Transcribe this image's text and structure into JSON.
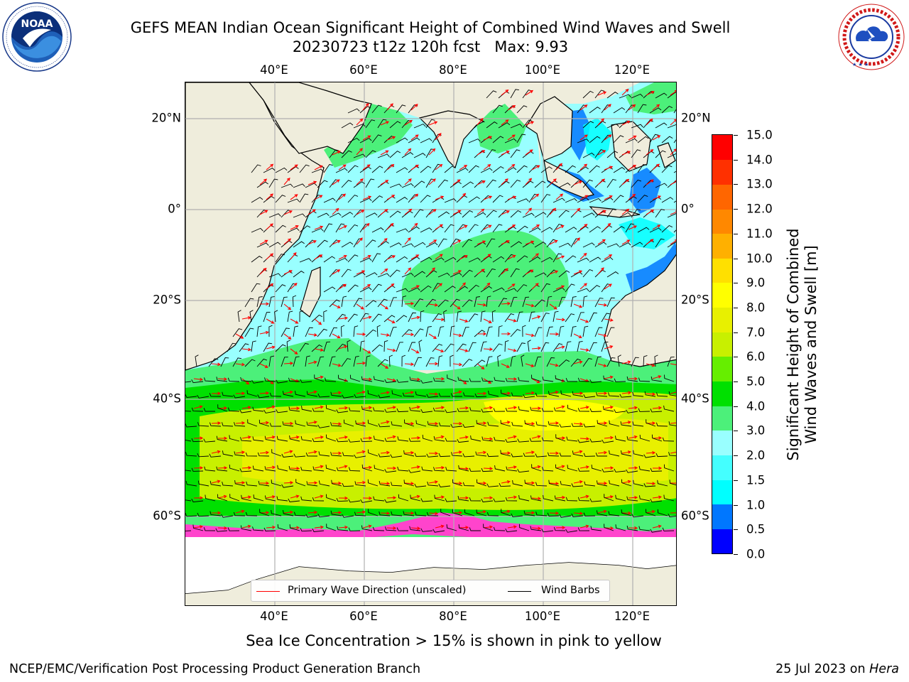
{
  "header": {
    "title_line1": "GEFS MEAN Indian Ocean Significant Height of Combined Wind Waves and Swell",
    "title_line2": "20230723 t12z 120h fcst   Max: 9.93"
  },
  "logos": {
    "left": {
      "icon": "noaa-logo",
      "text": "NOAA",
      "ring_text": "NATIONAL OCEANIC AND ATMOSPHERIC ADMINISTRATION · U.S. DEPARTMENT OF COMMERCE"
    },
    "right": {
      "icon": "nws-logo",
      "ring_text": "NATIONAL WEATHER SERVICE"
    }
  },
  "map": {
    "axes": {
      "lon_ticks": [
        "40°E",
        "60°E",
        "80°E",
        "100°E",
        "120°E"
      ],
      "lat_ticks_left": [
        "20°N",
        "0°",
        "20°S",
        "40°S",
        "60°S"
      ],
      "lat_ticks_right": [
        "20°N",
        "0°",
        "20°S",
        "40°S",
        "60°S"
      ]
    },
    "legend": {
      "wave_label": "Primary Wave Direction (unscaled)",
      "barb_label": "Wind Barbs"
    },
    "colors": {
      "land": "#efeddc",
      "ice": "#ff44cc",
      "wave_arrow": "#ff0000",
      "wind_barb": "#000000",
      "grid": "#b0b0b0"
    }
  },
  "colorbar": {
    "label_line1": "Significant Height of Combined",
    "label_line2": "Wind Waves and Swell [m]",
    "ticks": [
      "15.0",
      "14.0",
      "13.0",
      "12.0",
      "11.0",
      "10.0",
      "9.0",
      "8.0",
      "7.0",
      "6.0",
      "5.0",
      "4.0",
      "3.0",
      "2.0",
      "1.5",
      "1.0",
      "0.5",
      "0.0"
    ],
    "colors": [
      "#0000ff",
      "#0077ff",
      "#00ffff",
      "#44ffff",
      "#99ffff",
      "#4cf07a",
      "#00e000",
      "#66ee00",
      "#c8f000",
      "#e8f000",
      "#ffff00",
      "#ffe000",
      "#ffb000",
      "#ff8800",
      "#ff6600",
      "#ff3000",
      "#ff0000"
    ]
  },
  "footer": {
    "subtitle": "Sea Ice Concentration > 15% is shown in pink to yellow",
    "left": "NCEP/EMC/Verification Post Processing Product Generation Branch",
    "right_date": "25 Jul 2023 on",
    "right_host": "Hera"
  }
}
